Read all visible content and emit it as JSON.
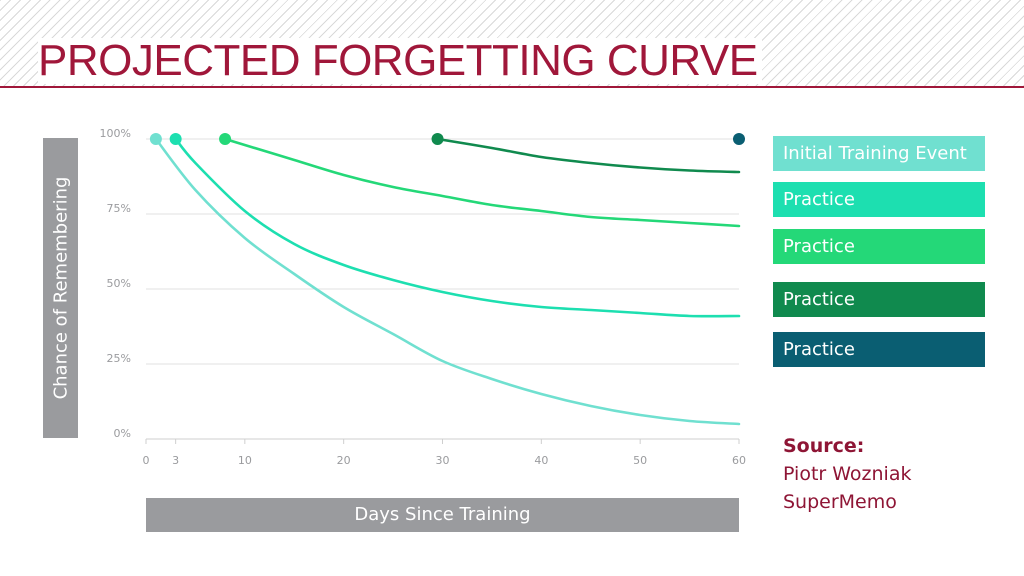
{
  "header": {
    "title": "PROJECTED FORGETTING CURVE"
  },
  "colors": {
    "title": "#a0173a",
    "axis_boxes": "#9a9b9e",
    "grid": "#e2e2e2",
    "series": [
      "#70e0d0",
      "#1ddfb0",
      "#24d878",
      "#108a4e",
      "#0a5e72"
    ]
  },
  "chart_data": {
    "type": "line",
    "title": "PROJECTED FORGETTING CURVE",
    "xlabel": "Days Since Training",
    "ylabel": "Chance of Remembering",
    "xlim": [
      0,
      60
    ],
    "ylim": [
      0,
      100
    ],
    "x_ticks": [
      0,
      3,
      10,
      20,
      30,
      40,
      50,
      60
    ],
    "x_tick_labels": [
      "0",
      "3",
      "10",
      "20",
      "30",
      "40",
      "50",
      "60"
    ],
    "y_ticks": [
      0,
      25,
      50,
      75,
      100
    ],
    "y_tick_labels": [
      "0%",
      "25%",
      "50%",
      "75%",
      "100%"
    ],
    "grid": true,
    "legend_position": "right",
    "series": [
      {
        "name": "Initial Training Event",
        "color": "#70e0d0",
        "x": [
          1,
          5,
          10,
          15,
          20,
          25,
          30,
          35,
          40,
          45,
          50,
          55,
          60
        ],
        "y": [
          100,
          83,
          67,
          55,
          44,
          35,
          26,
          20,
          15,
          11,
          8,
          6,
          5
        ]
      },
      {
        "name": "Practice",
        "color": "#1ddfb0",
        "x": [
          3,
          5,
          10,
          15,
          20,
          25,
          30,
          35,
          40,
          45,
          50,
          55,
          60
        ],
        "y": [
          100,
          92,
          76,
          65,
          58,
          53,
          49,
          46,
          44,
          43,
          42,
          41,
          41
        ]
      },
      {
        "name": "Practice",
        "color": "#24d878",
        "x": [
          8,
          10,
          15,
          20,
          25,
          30,
          35,
          40,
          45,
          50,
          55,
          60
        ],
        "y": [
          100,
          98,
          93,
          88,
          84,
          81,
          78,
          76,
          74,
          73,
          72,
          71
        ]
      },
      {
        "name": "Practice",
        "color": "#108a4e",
        "x": [
          29.5,
          35,
          40,
          45,
          50,
          55,
          60
        ],
        "y": [
          100,
          97,
          94,
          92,
          90.5,
          89.5,
          89
        ]
      },
      {
        "name": "Practice",
        "color": "#0a5e72",
        "x": [
          60
        ],
        "y": [
          100
        ]
      }
    ]
  },
  "legend": {
    "items": [
      {
        "label": "Initial Training Event",
        "color": "#70e0d0"
      },
      {
        "label": "Practice",
        "color": "#1ddfb0"
      },
      {
        "label": "Practice",
        "color": "#24d878"
      },
      {
        "label": "Practice",
        "color": "#108a4e"
      },
      {
        "label": "Practice",
        "color": "#0a5e72"
      }
    ]
  },
  "source": {
    "heading": "Source:",
    "lines": [
      "Piotr Wozniak",
      "SuperMemo"
    ]
  }
}
